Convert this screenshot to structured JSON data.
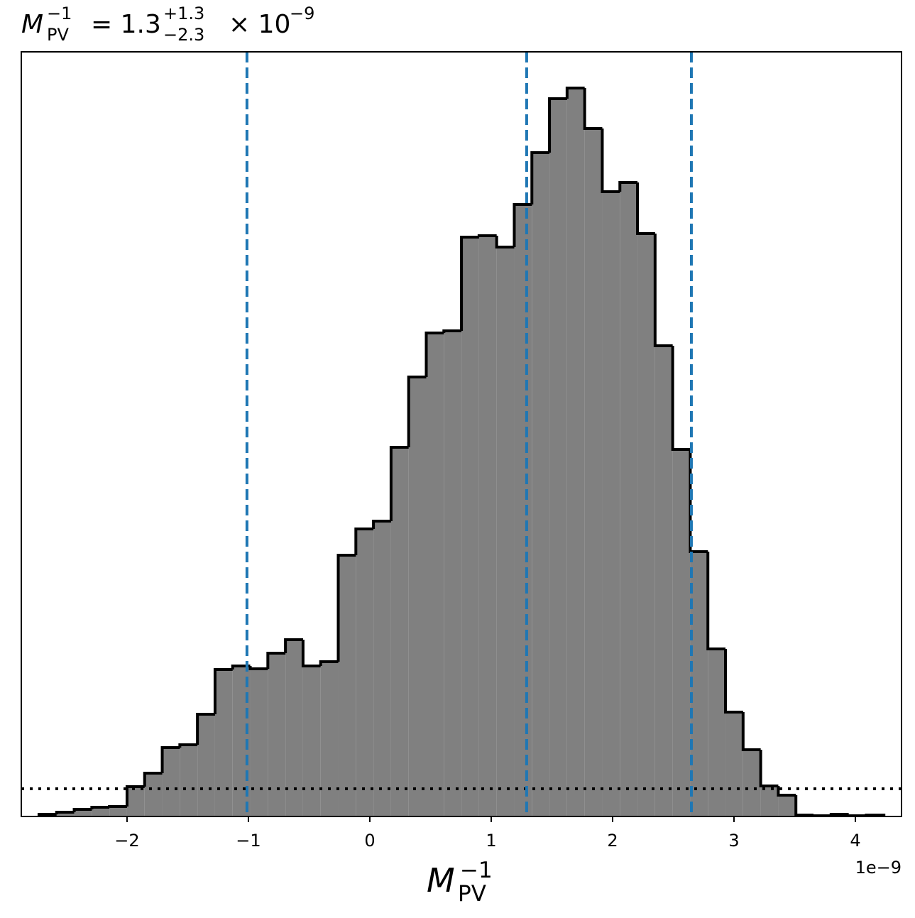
{
  "chart_data": {
    "type": "histogram",
    "title": {
      "symbol": "M",
      "symbol_sub": "PV",
      "symbol_sup": "−1",
      "eq": "= 1.3",
      "upper": "+1.3",
      "lower": "−2.3",
      "times": "× 10",
      "exp": "−9"
    },
    "xlabel": {
      "symbol": "M",
      "sub": "PV",
      "sup": "−1"
    },
    "x_offset_label": "1e−9",
    "bins": [
      -2.725,
      -2.58,
      -2.435,
      -2.29,
      -2.145,
      -2.0,
      -1.855,
      -1.71,
      -1.565,
      -1.42,
      -1.275,
      -1.13,
      -0.985,
      -0.84,
      -0.695,
      -0.55,
      -0.405,
      -0.26,
      -0.115,
      0.03,
      0.175,
      0.32,
      0.465,
      0.61,
      0.755,
      0.9,
      1.045,
      1.19,
      1.335,
      1.48,
      1.625,
      1.77,
      1.915,
      2.06,
      2.205,
      2.35,
      2.495,
      2.64,
      2.785,
      2.93,
      3.075,
      3.22,
      3.365,
      3.51,
      3.655,
      3.8,
      3.945,
      4.09,
      4.235
    ],
    "values": [
      3,
      6,
      10,
      13,
      14,
      42,
      61,
      97,
      101,
      144,
      207,
      212,
      208,
      230,
      249,
      212,
      218,
      368,
      405,
      416,
      520,
      619,
      681,
      684,
      816,
      818,
      802,
      862,
      935,
      1011,
      1026,
      969,
      880,
      893,
      821,
      663,
      517,
      373,
      236,
      147,
      94,
      43,
      30,
      2,
      1,
      3,
      1,
      2
    ],
    "color": "#808080",
    "edge_color": "#000000",
    "xlim": [
      -2.871,
      4.38
    ],
    "ylim": [
      0,
      1077
    ],
    "xticks": [
      {
        "value": -2,
        "label": "−2"
      },
      {
        "value": -1,
        "label": "−1"
      },
      0,
      1,
      2,
      3,
      4
    ],
    "vlines": [
      -1.012,
      1.292,
      2.649
    ],
    "vline_color": "#1f77b4",
    "hline": 39,
    "hline_color": "#000000"
  }
}
